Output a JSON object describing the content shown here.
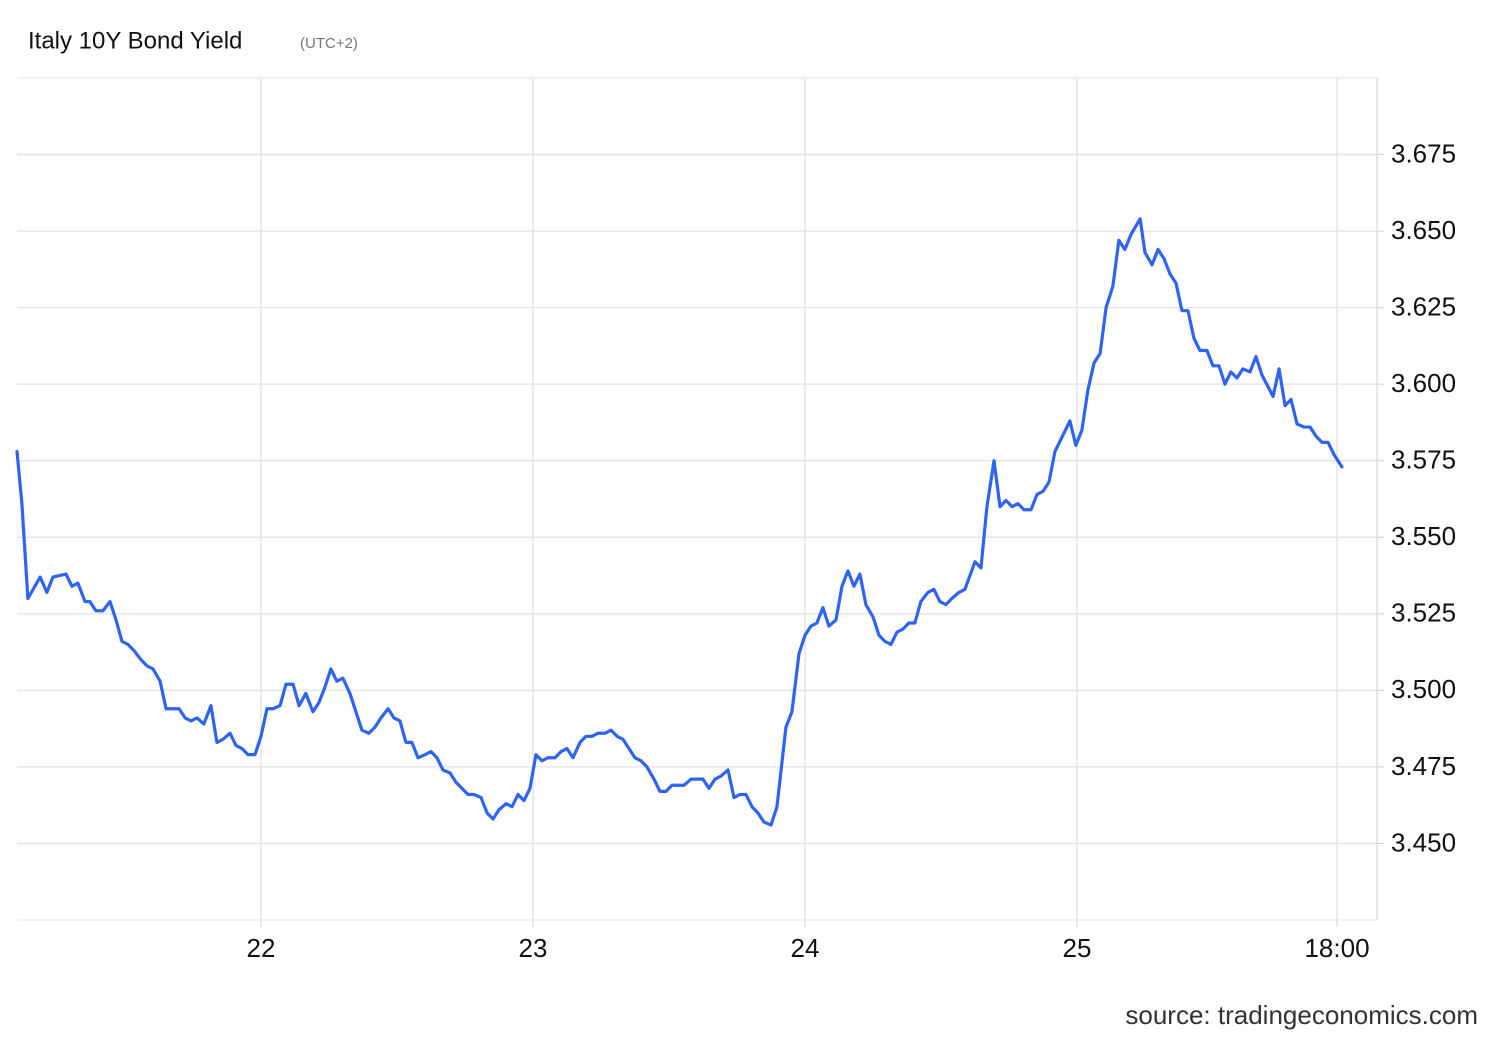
{
  "chart_data": {
    "type": "line",
    "title": "Italy 10Y Bond Yield",
    "subtitle": "(UTC+2)",
    "source": "source: tradingeconomics.com",
    "color": "#2f64f0",
    "grid": true,
    "xlim": [
      21.103,
      26.103
    ],
    "xticks": [
      22,
      23,
      24,
      25,
      {
        "value": 25.956,
        "label": "18:00"
      }
    ],
    "ylim": [
      3.425,
      3.7
    ],
    "yticks": [
      {
        "value": 3.45,
        "label": "3.450"
      },
      3.475,
      {
        "value": 3.5,
        "label": "3.500"
      },
      3.525,
      {
        "value": 3.55,
        "label": "3.550"
      },
      3.575,
      {
        "value": 3.6,
        "label": "3.600"
      },
      3.625,
      {
        "value": 3.65,
        "label": "3.650"
      },
      3.675
    ],
    "x": [
      21.103,
      21.121,
      21.143,
      21.188,
      21.213,
      21.235,
      21.283,
      21.305,
      21.327,
      21.353,
      21.371,
      21.393,
      21.419,
      21.445,
      21.467,
      21.489,
      21.511,
      21.533,
      21.559,
      21.581,
      21.603,
      21.629,
      21.651,
      21.699,
      21.721,
      21.743,
      21.765,
      21.79,
      21.816,
      21.838,
      21.86,
      21.886,
      21.908,
      21.93,
      21.952,
      21.978,
      22.0,
      22.022,
      22.044,
      22.07,
      22.092,
      22.118,
      22.14,
      22.165,
      22.191,
      22.213,
      22.235,
      22.257,
      22.279,
      22.301,
      22.327,
      22.349,
      22.371,
      22.397,
      22.419,
      22.441,
      22.467,
      22.489,
      22.511,
      22.533,
      22.555,
      22.577,
      22.603,
      22.625,
      22.647,
      22.669,
      22.695,
      22.717,
      22.739,
      22.761,
      22.783,
      22.809,
      22.831,
      22.853,
      22.875,
      22.901,
      22.923,
      22.945,
      22.967,
      22.989,
      23.011,
      23.033,
      23.055,
      23.081,
      23.103,
      23.125,
      23.147,
      23.173,
      23.195,
      23.217,
      23.239,
      23.265,
      23.287,
      23.309,
      23.331,
      23.353,
      23.375,
      23.397,
      23.419,
      23.445,
      23.467,
      23.489,
      23.511,
      23.533,
      23.555,
      23.581,
      23.603,
      23.625,
      23.647,
      23.669,
      23.691,
      23.717,
      23.739,
      23.761,
      23.783,
      23.805,
      23.827,
      23.849,
      23.875,
      23.897,
      23.93,
      23.952,
      23.978,
      24.0,
      24.022,
      24.044,
      24.066,
      24.088,
      24.114,
      24.136,
      24.158,
      24.18,
      24.202,
      24.224,
      24.25,
      24.272,
      24.294,
      24.316,
      24.338,
      24.36,
      24.382,
      24.404,
      24.426,
      24.452,
      24.474,
      24.496,
      24.518,
      24.54,
      24.566,
      24.588,
      24.625,
      24.647,
      24.669,
      24.695,
      24.717,
      24.739,
      24.761,
      24.783,
      24.805,
      24.831,
      24.853,
      24.875,
      24.897,
      24.919,
      24.941,
      24.974,
      24.996,
      25.018,
      25.04,
      25.063,
      25.085,
      25.107,
      25.132,
      25.154,
      25.176,
      25.199,
      25.232,
      25.25,
      25.276,
      25.298,
      25.32,
      25.342,
      25.364,
      25.386,
      25.408,
      25.43,
      25.452,
      25.478,
      25.5,
      25.522,
      25.544,
      25.566,
      25.588,
      25.61,
      25.636,
      25.658,
      25.68,
      25.721,
      25.743,
      25.765,
      25.787,
      25.809,
      25.835,
      25.857,
      25.879,
      25.901,
      25.923,
      25.945,
      25.974
    ],
    "values": [
      3.578,
      3.561,
      3.53,
      3.537,
      3.532,
      3.537,
      3.538,
      3.534,
      3.535,
      3.529,
      3.529,
      3.526,
      3.526,
      3.529,
      3.523,
      3.516,
      3.515,
      3.513,
      3.51,
      3.508,
      3.507,
      3.503,
      3.494,
      3.494,
      3.491,
      3.49,
      3.491,
      3.489,
      3.495,
      3.483,
      3.484,
      3.486,
      3.482,
      3.481,
      3.479,
      3.479,
      3.485,
      3.494,
      3.494,
      3.495,
      3.502,
      3.502,
      3.495,
      3.499,
      3.493,
      3.496,
      3.501,
      3.507,
      3.503,
      3.504,
      3.499,
      3.493,
      3.487,
      3.486,
      3.488,
      3.491,
      3.494,
      3.491,
      3.49,
      3.483,
      3.483,
      3.478,
      3.479,
      3.48,
      3.478,
      3.474,
      3.473,
      3.47,
      3.468,
      3.466,
      3.466,
      3.465,
      3.46,
      3.458,
      3.461,
      3.463,
      3.462,
      3.466,
      3.464,
      3.468,
      3.479,
      3.477,
      3.478,
      3.478,
      3.48,
      3.481,
      3.478,
      3.483,
      3.485,
      3.485,
      3.486,
      3.486,
      3.487,
      3.485,
      3.484,
      3.481,
      3.478,
      3.477,
      3.475,
      3.471,
      3.467,
      3.467,
      3.469,
      3.469,
      3.469,
      3.471,
      3.471,
      3.471,
      3.468,
      3.471,
      3.472,
      3.474,
      3.465,
      3.466,
      3.466,
      3.462,
      3.46,
      3.457,
      3.456,
      3.462,
      3.488,
      3.493,
      3.512,
      3.518,
      3.521,
      3.522,
      3.527,
      3.521,
      3.523,
      3.534,
      3.539,
      3.534,
      3.538,
      3.528,
      3.524,
      3.518,
      3.516,
      3.515,
      3.519,
      3.52,
      3.522,
      3.522,
      3.529,
      3.532,
      3.533,
      3.529,
      3.528,
      3.53,
      3.532,
      3.533,
      3.542,
      3.54,
      3.56,
      3.575,
      3.56,
      3.562,
      3.56,
      3.561,
      3.559,
      3.559,
      3.564,
      3.565,
      3.568,
      3.578,
      3.582,
      3.588,
      3.58,
      3.585,
      3.598,
      3.607,
      3.61,
      3.625,
      3.632,
      3.647,
      3.644,
      3.649,
      3.654,
      3.643,
      3.639,
      3.644,
      3.641,
      3.636,
      3.633,
      3.624,
      3.624,
      3.615,
      3.611,
      3.611,
      3.606,
      3.606,
      3.6,
      3.604,
      3.602,
      3.605,
      3.604,
      3.609,
      3.603,
      3.596,
      3.605,
      3.593,
      3.595,
      3.587,
      3.586,
      3.586,
      3.583,
      3.581,
      3.581,
      3.577,
      3.573
    ]
  }
}
